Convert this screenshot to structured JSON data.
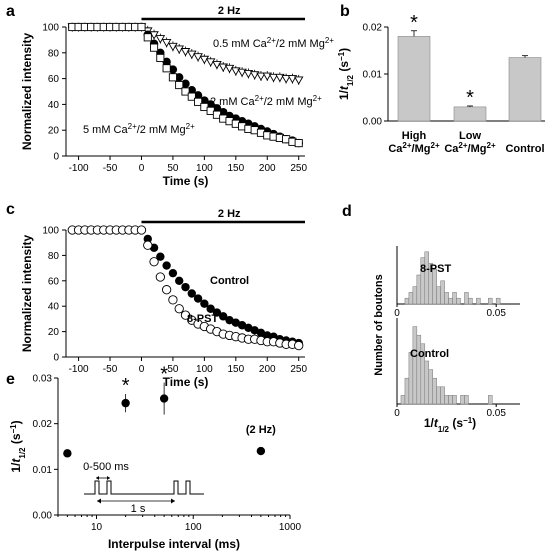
{
  "chart_data": [
    {
      "panel": "a",
      "type": "line",
      "stimulus_label": "2 Hz",
      "xlabel": "Time (s)",
      "ylabel": "Normalized intensity",
      "xlim": [
        -120,
        260
      ],
      "ylim": [
        0,
        100
      ],
      "xticks": [
        -100,
        -50,
        0,
        50,
        100,
        150,
        200,
        250
      ],
      "yticks": [
        0,
        20,
        40,
        60,
        80,
        100
      ],
      "x": [
        -110,
        -100,
        -90,
        -80,
        -70,
        -60,
        -50,
        -40,
        -30,
        -20,
        -10,
        0,
        10,
        20,
        30,
        40,
        50,
        60,
        70,
        80,
        90,
        100,
        110,
        120,
        130,
        140,
        150,
        160,
        170,
        180,
        190,
        200,
        210,
        220,
        230,
        240,
        250
      ],
      "series": [
        {
          "name": "0.5 mM Ca2+/2 mM Mg2+",
          "marker": "open-triangle",
          "values": [
            100,
            100,
            100,
            100,
            100,
            100,
            100,
            100,
            100,
            100,
            100,
            100,
            97,
            94,
            91,
            88,
            85,
            83,
            81,
            79,
            77,
            75,
            73,
            71,
            69,
            68,
            66,
            65,
            64,
            63,
            62,
            62,
            61,
            61,
            60,
            60,
            59
          ]
        },
        {
          "name": "2 mM Ca2+/2 mM Mg2+",
          "marker": "filled-circle",
          "values": [
            100,
            100,
            100,
            100,
            100,
            100,
            100,
            100,
            100,
            100,
            100,
            100,
            94,
            87,
            80,
            73,
            67,
            61,
            56,
            51,
            47,
            43,
            40,
            37,
            34,
            31,
            29,
            27,
            25,
            23,
            21,
            19,
            17,
            15,
            13,
            12,
            10
          ]
        },
        {
          "name": "5 mM Ca2+/2 mM Mg2+",
          "marker": "open-square",
          "values": [
            100,
            100,
            100,
            100,
            100,
            100,
            100,
            100,
            100,
            100,
            100,
            100,
            92,
            84,
            76,
            68,
            61,
            55,
            50,
            46,
            42,
            38,
            35,
            32,
            29,
            27,
            25,
            23,
            21,
            20,
            18,
            16,
            15,
            14,
            13,
            11,
            10
          ]
        }
      ]
    },
    {
      "panel": "b",
      "type": "bar",
      "categories": [
        "High Ca2+/Mg2+",
        "Low Ca2+/Mg2+",
        "Control"
      ],
      "values": [
        0.018,
        0.003,
        0.0135
      ],
      "errors": [
        0.0012,
        0.0002,
        0.0004
      ],
      "significant": [
        true,
        true,
        false
      ],
      "ylabel": "1/t1/2 (s−1)",
      "ylim": [
        0,
        0.02
      ],
      "yticks": [
        "0.00",
        "0.01",
        "0.02"
      ]
    },
    {
      "panel": "c",
      "type": "line",
      "stimulus_label": "2 Hz",
      "xlabel": "Time (s)",
      "ylabel": "Normalized intensity",
      "xlim": [
        -120,
        260
      ],
      "ylim": [
        0,
        100
      ],
      "xticks": [
        -100,
        -50,
        0,
        50,
        100,
        150,
        200,
        250
      ],
      "yticks": [
        0,
        20,
        40,
        60,
        80,
        100
      ],
      "x": [
        -110,
        -100,
        -90,
        -80,
        -70,
        -60,
        -50,
        -40,
        -30,
        -20,
        -10,
        0,
        10,
        20,
        30,
        40,
        50,
        60,
        70,
        80,
        90,
        100,
        110,
        120,
        130,
        140,
        150,
        160,
        170,
        180,
        190,
        200,
        210,
        220,
        230,
        240,
        250
      ],
      "series": [
        {
          "name": "Control",
          "marker": "filled-circle",
          "values": [
            100,
            100,
            100,
            100,
            100,
            100,
            100,
            100,
            100,
            100,
            100,
            100,
            93,
            86,
            79,
            72,
            66,
            60,
            55,
            50,
            46,
            42,
            38,
            35,
            32,
            29,
            27,
            25,
            23,
            21,
            19,
            17,
            16,
            14,
            13,
            12,
            11
          ]
        },
        {
          "name": "8-PST",
          "marker": "open-circle",
          "values": [
            100,
            100,
            100,
            100,
            100,
            100,
            100,
            100,
            100,
            100,
            100,
            100,
            88,
            75,
            63,
            53,
            45,
            38,
            33,
            29,
            26,
            24,
            22,
            20,
            18,
            17,
            16,
            15,
            14,
            14,
            13,
            12,
            12,
            11,
            10,
            10,
            9
          ]
        }
      ]
    },
    {
      "panel": "d",
      "type": "bar",
      "xlabel": "1/t1/2 (s−1)",
      "ylabel": "Number of boutons",
      "xticks": [
        "0",
        "0.05"
      ],
      "bin_start": 0.002,
      "bin_width": 0.002,
      "series": [
        {
          "name": "8-PST",
          "counts": [
            0,
            1,
            2,
            3,
            5,
            8,
            9,
            7,
            6,
            3,
            4,
            2,
            1,
            2,
            1,
            0,
            2,
            1,
            0,
            1,
            0,
            0,
            1,
            0,
            1
          ]
        },
        {
          "name": "Control",
          "counts": [
            1,
            3,
            6,
            9,
            8,
            7,
            5,
            4,
            3,
            2,
            2,
            1,
            1,
            1,
            0,
            1,
            1,
            0,
            0,
            0,
            0,
            0,
            1,
            0,
            0
          ]
        }
      ]
    },
    {
      "panel": "e",
      "type": "scatter",
      "xlabel": "Interpulse interval (ms)",
      "ylabel": "1/t1/2 (s−1)",
      "xscale": "log",
      "xlim": [
        4,
        1000
      ],
      "ylim": [
        0,
        0.03
      ],
      "xticks": [
        "10",
        "100",
        "1000"
      ],
      "yticks": [
        "0.00",
        "0.01",
        "0.02",
        "0.03"
      ],
      "x": [
        5,
        20,
        50,
        500
      ],
      "values": [
        0.0135,
        0.0245,
        0.0255,
        0.014
      ],
      "errors": [
        0.0005,
        0.002,
        0.0035,
        0.0005
      ],
      "significant": [
        false,
        true,
        true,
        false
      ],
      "point_labels": [
        "",
        "",
        "",
        "(2 Hz)"
      ],
      "inset_labels": {
        "interval": "0-500 ms",
        "period": "1 s"
      }
    }
  ],
  "text": {
    "panel_a": "a",
    "panel_b": "b",
    "panel_c": "c",
    "panel_d": "d",
    "panel_e": "e",
    "star": "*"
  }
}
